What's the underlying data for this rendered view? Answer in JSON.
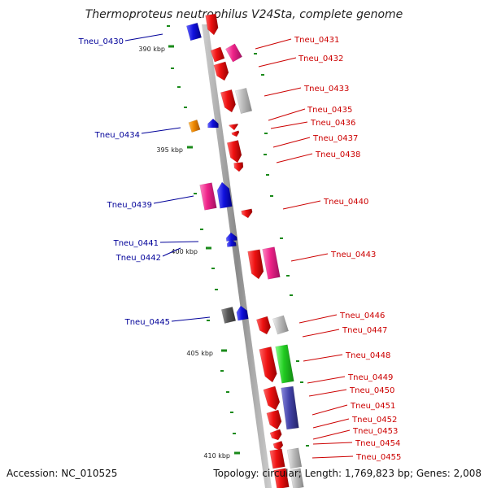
{
  "title": "Thermoproteus neutrophilus V24Sta, complete genome",
  "footer": {
    "accession": "Accession: NC_010525",
    "summary": "Topology: circular; Length: 1,769,823 bp; Genes: 2,008"
  },
  "ticks": [
    "390 kbp",
    "395 kbp",
    "400 kbp",
    "405 kbp",
    "410 kbp"
  ],
  "colors": {
    "backbone": "#999999",
    "tick": "#1a8a1a",
    "red": "#ee1111",
    "magenta": "#ee2288",
    "blue": "#1111dd",
    "gray": "#bbbbbb",
    "dark_gray": "#555555",
    "orange": "#ee8800",
    "green": "#22cc22",
    "purple": "#4444aa",
    "label_forward": "#cc0000",
    "label_reverse": "#000099"
  },
  "labels_forward": [
    "Tneu_0431",
    "Tneu_0432",
    "Tneu_0433",
    "Tneu_0435",
    "Tneu_0436",
    "Tneu_0437",
    "Tneu_0438",
    "Tneu_0440",
    "Tneu_0443",
    "Tneu_0446",
    "Tneu_0447",
    "Tneu_0448",
    "Tneu_0449",
    "Tneu_0450",
    "Tneu_0451",
    "Tneu_0452",
    "Tneu_0453",
    "Tneu_0454",
    "Tneu_0455"
  ],
  "labels_reverse": [
    "Tneu_0430",
    "Tneu_0434",
    "Tneu_0439",
    "Tneu_0441",
    "Tneu_0442",
    "Tneu_0445"
  ]
}
